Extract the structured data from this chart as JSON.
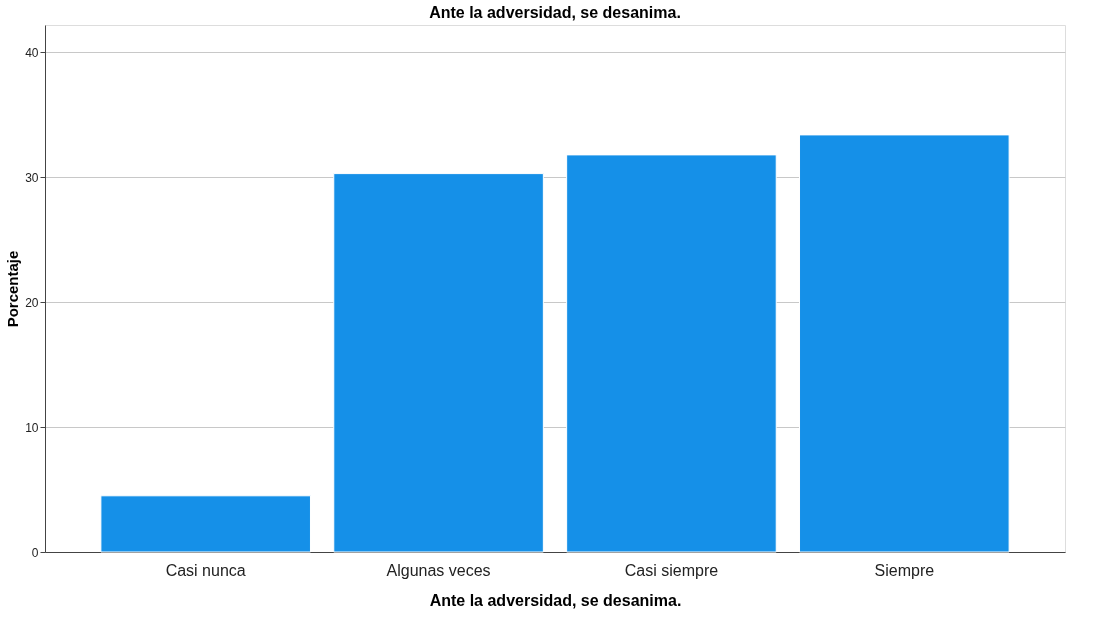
{
  "chart_data": {
    "type": "bar",
    "title": "Ante la adversidad, se desanima.",
    "xlabel": "Ante la adversidad, se desanima.",
    "ylabel": "Porcentaje",
    "categories": [
      "Casi nunca",
      "Algunas veces",
      "Casi siempre",
      "Siempre"
    ],
    "values": [
      4.5,
      30.3,
      31.8,
      33.4
    ],
    "color": "#1590e8",
    "ylim": [
      0,
      42.2
    ],
    "yticks": [
      0,
      10,
      20,
      30,
      40
    ],
    "grid": "y"
  }
}
